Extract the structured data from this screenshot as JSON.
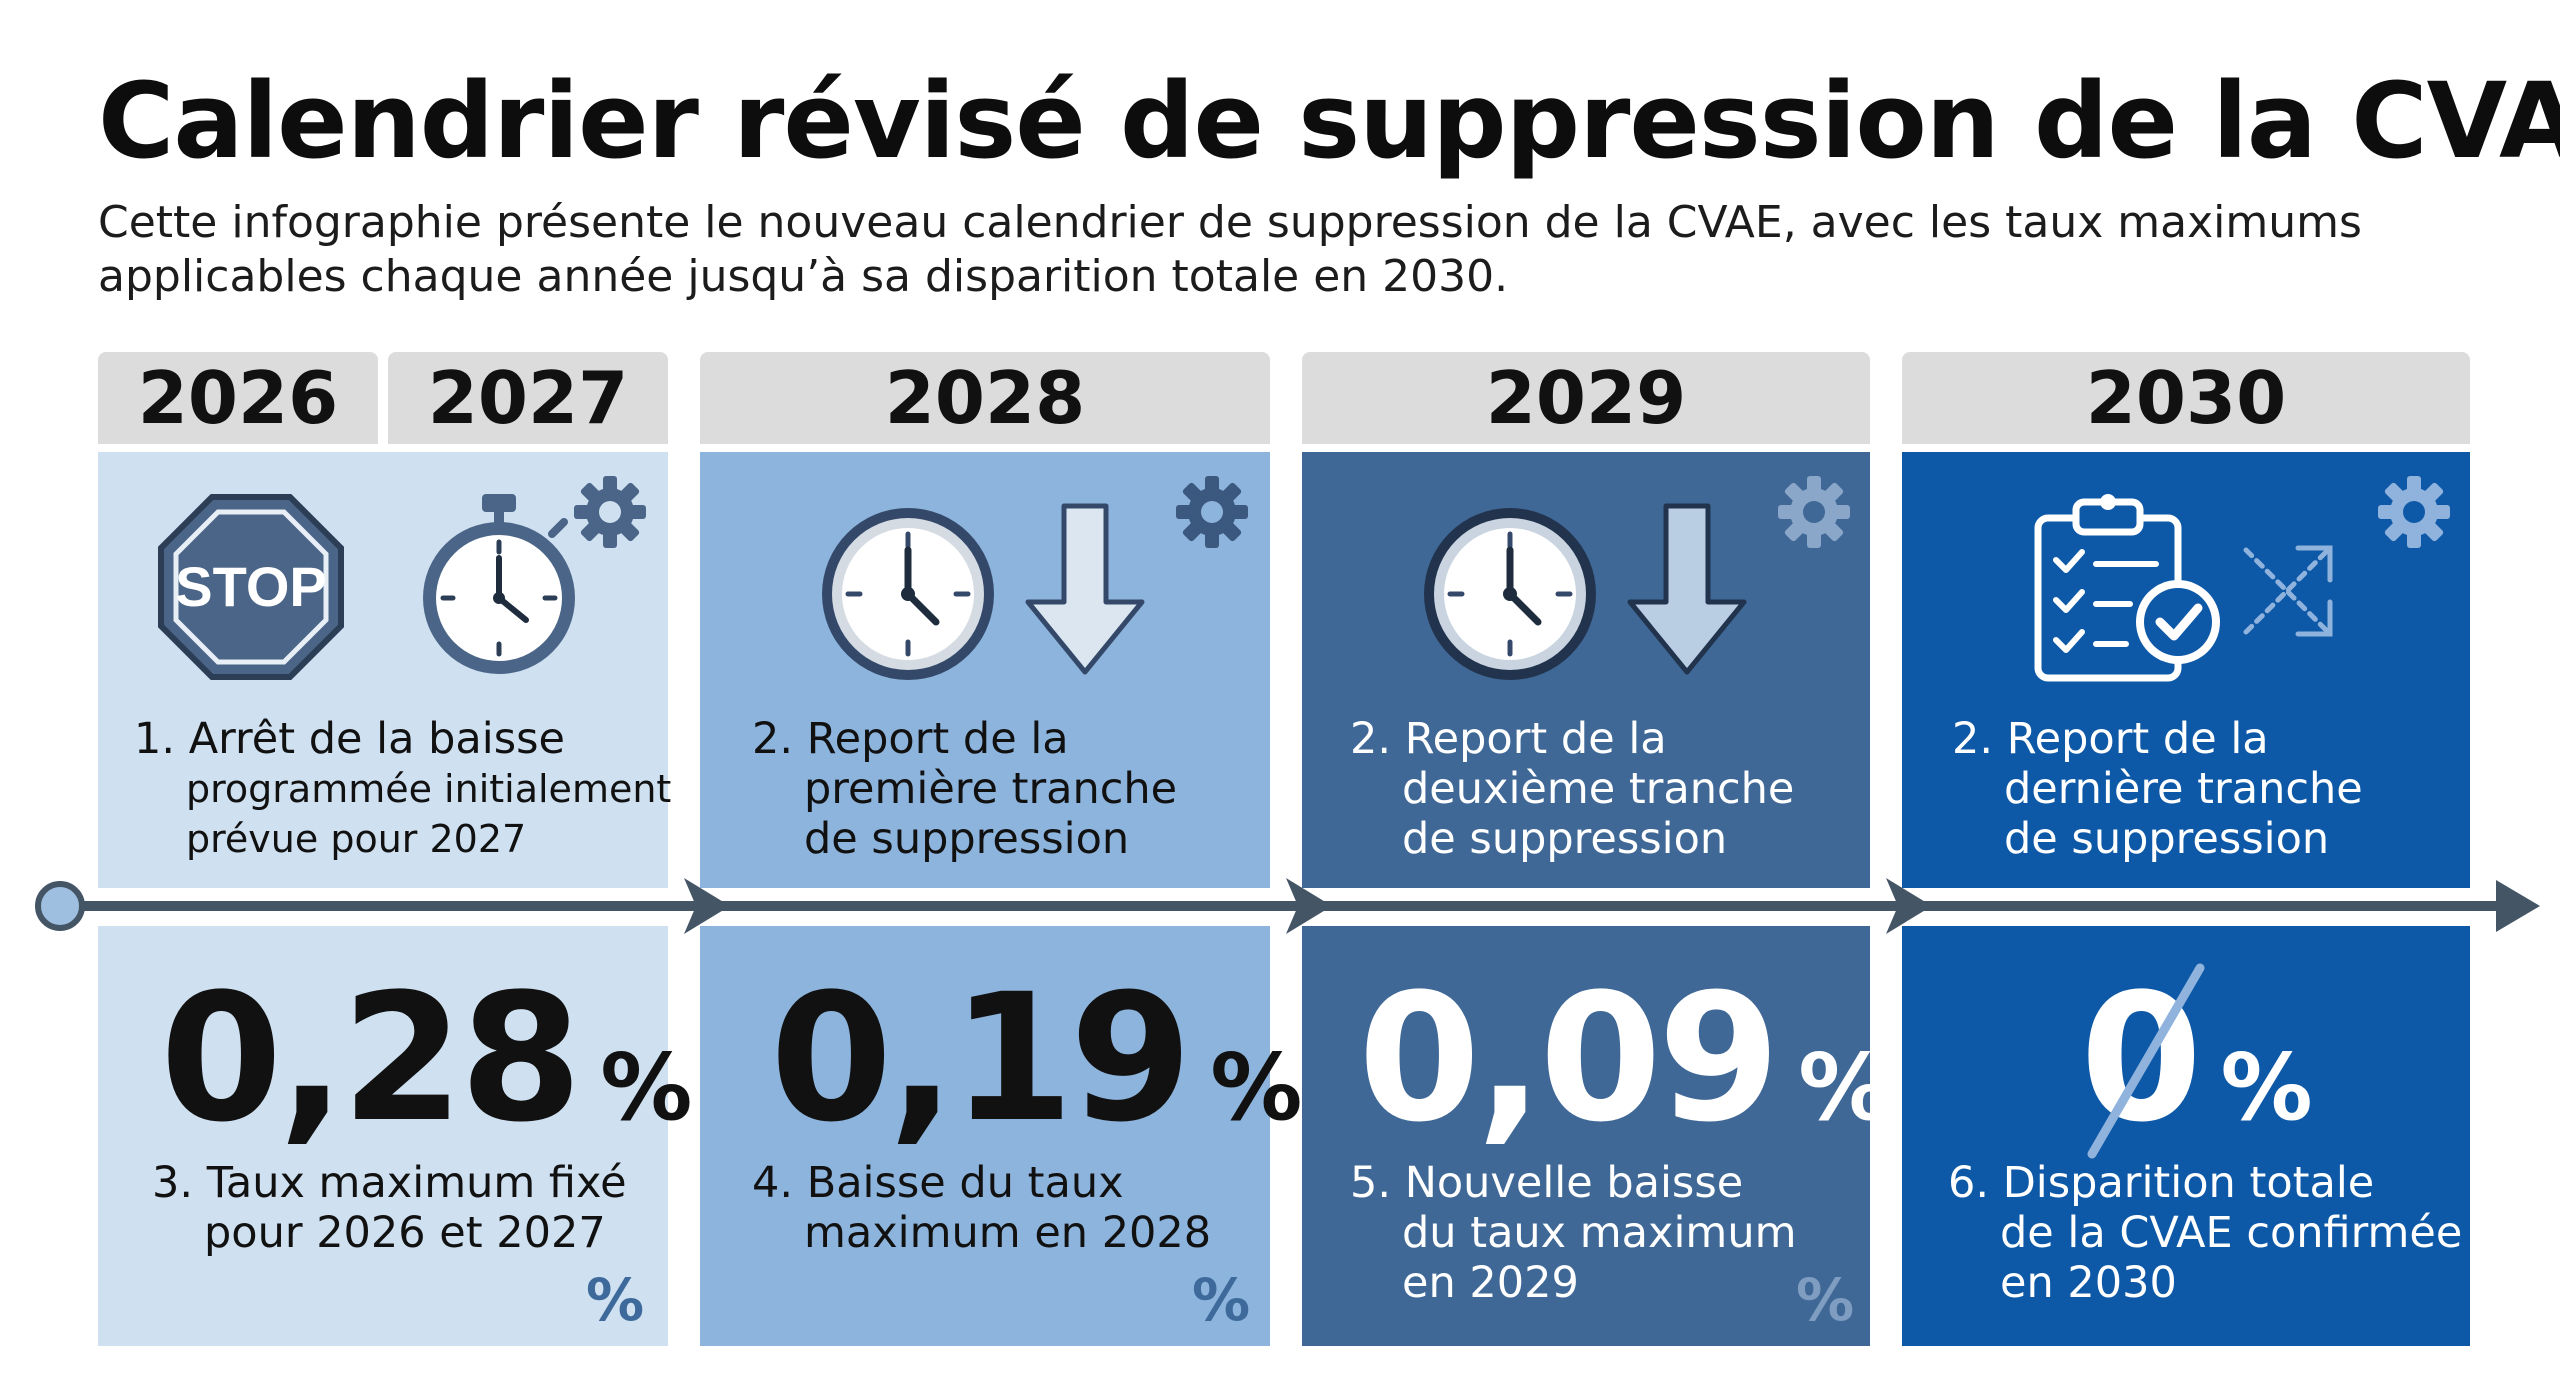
{
  "title": "Calendrier révisé de suppression de la CVAE",
  "subtitle": "Cette infographie présente le nouveau calendrier de suppression de la CVAE, avec les taux maximums applicables chaque année jusqu’à sa disparition totale en 2030.",
  "years": [
    "2026",
    "2027",
    "2028",
    "2029",
    "2030"
  ],
  "stop_sign_text": "STOP",
  "columns": [
    {
      "step_lines": [
        "1. Arrêt de la baisse",
        "programmée initialement",
        "prévue pour 2027"
      ],
      "rate_value": "0,28",
      "rate_unit": "%",
      "rate_lines": [
        "3. Taux maximum fixé",
        "pour 2026 et 2027"
      ],
      "corner_symbol": "%"
    },
    {
      "step_lines": [
        "2. Report de la",
        "première tranche",
        "de suppression"
      ],
      "rate_value": "0,19",
      "rate_unit": "%",
      "rate_lines": [
        "4. Baisse du taux",
        "maximum en 2028"
      ],
      "corner_symbol": "%"
    },
    {
      "step_lines": [
        "2. Report de la",
        "deuxième tranche",
        "de suppression"
      ],
      "rate_value": "0,09",
      "rate_unit": "%",
      "rate_lines": [
        "5. Nouvelle baisse",
        "du taux maximum",
        "en 2029"
      ],
      "corner_symbol": "%"
    },
    {
      "step_lines": [
        "2. Report de la",
        "dernière tranche",
        "de suppression"
      ],
      "rate_value": "0",
      "rate_unit": "%",
      "rate_lines": [
        "6. Disparition totale",
        "de la CVAE confirmée",
        "en 2030"
      ]
    }
  ],
  "colors": {
    "panel_2026_2027": "#cfe0f1",
    "panel_2028": "#8db4dd",
    "panel_2029": "#3f6896",
    "panel_2030": "#0e59a7",
    "year_header": "#dcdcdc",
    "timeline": "#445566"
  }
}
